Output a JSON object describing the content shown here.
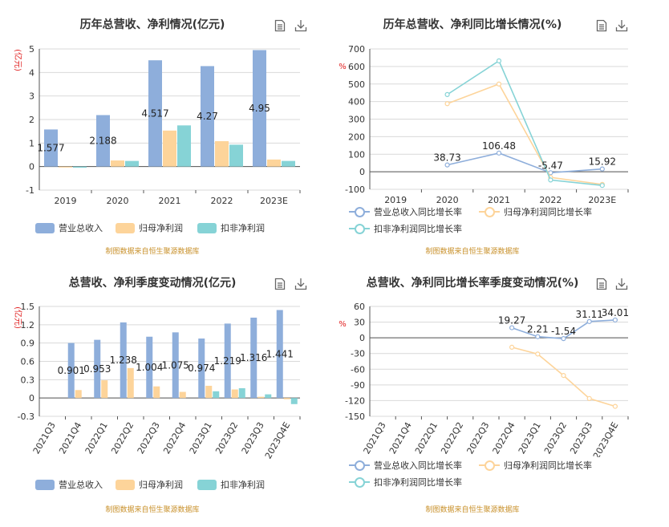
{
  "colors": {
    "revenue": "#8eaedb",
    "net_profit": "#fdd49a",
    "deducted_profit": "#86d3d6",
    "revenue_growth": "#8eaedb",
    "net_profit_growth": "#fdd49a",
    "deducted_profit_growth": "#86d3d6"
  },
  "icons": [
    "document-icon",
    "download-icon"
  ],
  "source": "制图数据来自恒生聚源数据库",
  "chart_data": [
    {
      "id": "c1",
      "type": "bar",
      "title": "历年总营收、净利情况(亿元)",
      "ylabel": "(亿元)",
      "categories": [
        "2019",
        "2020",
        "2021",
        "2022",
        "2023E"
      ],
      "ylim": [
        -1,
        5
      ],
      "yticks": [
        "-1",
        "0",
        "1",
        "2",
        "3",
        "4",
        "5"
      ],
      "series": [
        {
          "name": "营业总收入",
          "values": [
            1.577,
            2.188,
            4.517,
            4.27,
            4.95
          ],
          "labels": [
            "1.577",
            "2.188",
            "4.517",
            "4.27",
            "4.95"
          ]
        },
        {
          "name": "归母净利润",
          "values": [
            -0.04,
            0.26,
            1.53,
            1.08,
            0.3
          ]
        },
        {
          "name": "扣非净利润",
          "values": [
            -0.05,
            0.24,
            1.75,
            0.93,
            0.24
          ]
        }
      ],
      "legend": "bottom-left",
      "grid": true
    },
    {
      "id": "c2",
      "type": "line",
      "title": "历年总营收、净利同比增长情况(%)",
      "ylabel": "%",
      "categories": [
        "2019",
        "2020",
        "2021",
        "2022",
        "2023E"
      ],
      "ylim": [
        -100,
        700
      ],
      "yticks": [
        "-100",
        "0",
        "100",
        "200",
        "300",
        "400",
        "500",
        "600",
        "700"
      ],
      "series": [
        {
          "name": "营业总收入同比增长率",
          "values": [
            null,
            38.73,
            106.48,
            -5.47,
            15.92
          ],
          "labels": [
            "",
            "38.73",
            "106.48",
            "-5.47",
            "15.92"
          ]
        },
        {
          "name": "归母净利润同比增长率",
          "values": [
            null,
            388,
            500,
            -32,
            -72
          ]
        },
        {
          "name": "扣非净利润同比增长率",
          "values": [
            null,
            440,
            632,
            -47,
            -78
          ]
        }
      ],
      "legend": "bottom",
      "grid": true
    },
    {
      "id": "c3",
      "type": "bar",
      "title": "总营收、净利季度变动情况(亿元)",
      "ylabel": "(亿元)",
      "categories": [
        "2021Q3",
        "2021Q4",
        "2022Q1",
        "2022Q2",
        "2022Q3",
        "2022Q4",
        "2023Q1",
        "2023Q2",
        "2023Q3",
        "2023Q4E"
      ],
      "ylim": [
        -0.3,
        1.5
      ],
      "yticks": [
        "-0.3",
        "0",
        "0.3",
        "0.6",
        "0.9",
        "1.2",
        "1.5"
      ],
      "series": [
        {
          "name": "营业总收入",
          "values": [
            null,
            0.901,
            0.953,
            1.238,
            1.004,
            1.075,
            0.974,
            1.219,
            1.316,
            1.441
          ],
          "labels": [
            "",
            "0.901",
            "0.953",
            "1.238",
            "1.004",
            "1.075",
            "0.974",
            "1.219",
            "1.316",
            "1.441"
          ]
        },
        {
          "name": "归母净利润",
          "values": [
            null,
            0.13,
            0.29,
            0.49,
            0.19,
            0.1,
            0.2,
            0.14,
            0.02,
            -0.02
          ]
        },
        {
          "name": "扣非净利润",
          "values": [
            null,
            null,
            null,
            null,
            null,
            null,
            0.11,
            0.16,
            0.06,
            -0.1
          ]
        }
      ],
      "legend": "bottom-left",
      "grid": true
    },
    {
      "id": "c4",
      "type": "line",
      "title": "总营收、净利同比增长率季度变动情况(%)",
      "ylabel": "%",
      "categories": [
        "2021Q3",
        "2021Q4",
        "2022Q1",
        "2022Q2",
        "2022Q3",
        "2022Q4",
        "2023Q1",
        "2023Q2",
        "2023Q3",
        "2023Q4E"
      ],
      "ylim": [
        -150,
        60
      ],
      "yticks": [
        "-150",
        "-120",
        "-90",
        "-60",
        "-30",
        "0",
        "30",
        "60"
      ],
      "series": [
        {
          "name": "营业总收入同比增长率",
          "values": [
            null,
            null,
            null,
            null,
            null,
            19.27,
            2.21,
            -1.54,
            31.11,
            34.01
          ],
          "labels": [
            "",
            "",
            "",
            "",
            "",
            "19.27",
            "2.21",
            "-1.54",
            "31.11",
            "34.01"
          ]
        },
        {
          "name": "归母净利润同比增长率",
          "values": [
            null,
            null,
            null,
            null,
            null,
            -18,
            -31,
            -72,
            -116,
            -131
          ]
        },
        {
          "name": "扣非净利润同比增长率",
          "values": [
            null,
            null,
            null,
            null,
            null,
            null,
            null,
            null,
            null,
            null
          ]
        }
      ],
      "legend": "bottom",
      "grid": true
    }
  ]
}
